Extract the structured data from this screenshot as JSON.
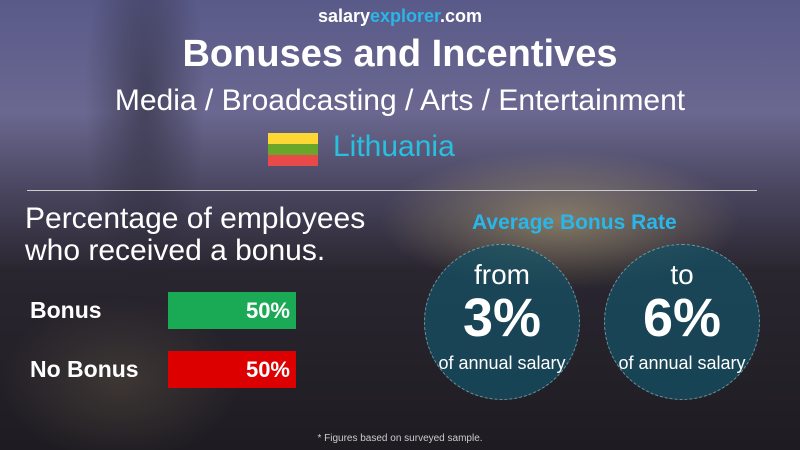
{
  "logo": {
    "part1": "salary",
    "part2": "explorer",
    "part3": ".com"
  },
  "title": "Bonuses and Incentives",
  "subtitle": "Media / Broadcasting / Arts / Entertainment",
  "country": "Lithuania",
  "flag_colors": [
    "#fdd835",
    "#6aa62a",
    "#e84a4a"
  ],
  "percentage_heading": "Percentage of employees who received a bonus.",
  "bars": [
    {
      "label": "Bonus",
      "value_text": "50%",
      "value": 50,
      "color": "#1aaa55"
    },
    {
      "label": "No Bonus",
      "value_text": "50%",
      "value": 50,
      "color": "#dd0000"
    }
  ],
  "average": {
    "heading": "Average Bonus Rate",
    "from": {
      "word": "from",
      "value": "3%",
      "note": "of annual salary"
    },
    "to": {
      "word": "to",
      "value": "6%",
      "note": "of annual salary"
    }
  },
  "footnote": "* Figures based on surveyed sample."
}
